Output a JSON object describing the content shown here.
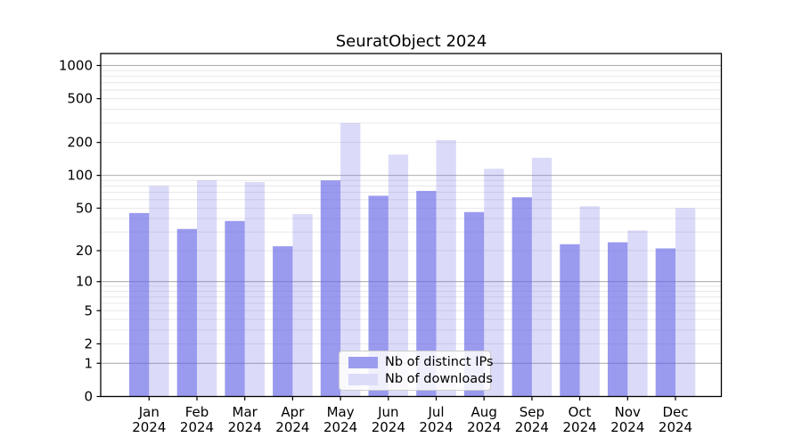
{
  "title": "SeuratObject 2024",
  "chart_data": {
    "type": "bar",
    "title": "SeuratObject 2024",
    "xlabel": "",
    "ylabel": "",
    "yscale": "log1p",
    "ylim": [
      0,
      1000
    ],
    "yticks": [
      0,
      1,
      2,
      5,
      10,
      20,
      50,
      100,
      200,
      500,
      1000
    ],
    "grid": {
      "major_lines": [
        1,
        10,
        100,
        1000
      ],
      "minor_multipliers": [
        2,
        3,
        4,
        5,
        6,
        7,
        8,
        9
      ],
      "major_color": "#b0b0b0",
      "minor_color": "#e8e8e8"
    },
    "categories": [
      "Jan",
      "Feb",
      "Mar",
      "Apr",
      "May",
      "Jun",
      "Jul",
      "Aug",
      "Sep",
      "Oct",
      "Nov",
      "Dec"
    ],
    "year_label": "2024",
    "series": [
      {
        "name": "Nb of distinct IPs",
        "base_color": "#6666e6",
        "alpha": 0.66,
        "rendered_color": "#9c9cef",
        "values": [
          45,
          32,
          38,
          22,
          90,
          65,
          72,
          46,
          63,
          23,
          24,
          21
        ]
      },
      {
        "name": "Nb of downloads",
        "base_color": "#6666e6",
        "alpha": 0.235,
        "rendered_color": "#dcdcf9",
        "values": [
          80,
          90,
          87,
          44,
          300,
          155,
          210,
          115,
          145,
          52,
          31,
          50
        ]
      }
    ],
    "legend_position": "inside-bottom-center",
    "axis_color": "#000000",
    "background_color": "#ffffff"
  }
}
